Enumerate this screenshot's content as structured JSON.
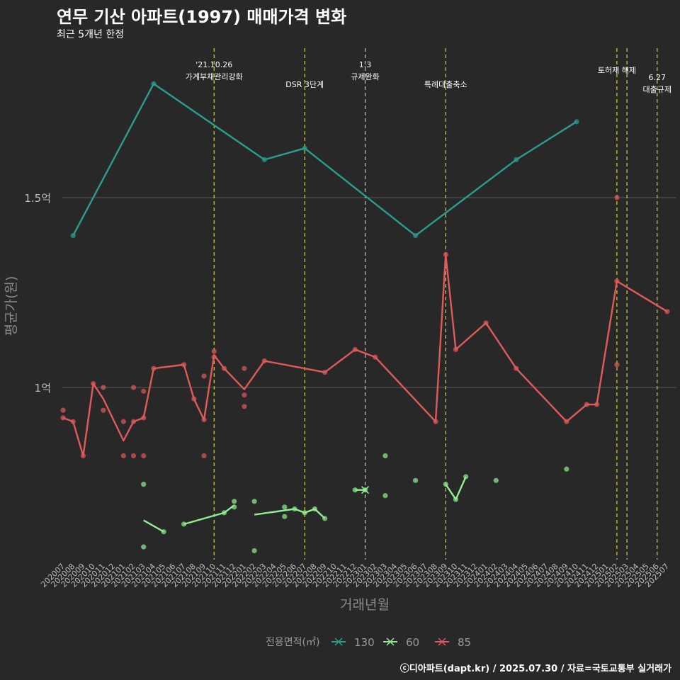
{
  "title": "연무 기산 아파트(1997) 매매가격 변화",
  "subtitle": "최근 5개년 한정",
  "footer": "ⓒ디아파트(dapt.kr) / 2025.07.30 / 자료=국토교통부 실거래가",
  "chart_data": {
    "type": "line",
    "title": "연무 기산 아파트(1997) 매매가격 변화",
    "subtitle": "최근 5개년 한정",
    "xlabel": "거래년월",
    "ylabel": "평균가(원)",
    "ylim": [
      0.45,
      1.95
    ],
    "y_unit": "억",
    "y_ticks": [
      {
        "value": 1.0,
        "label": "1억"
      },
      {
        "value": 1.5,
        "label": "1.5억"
      }
    ],
    "x_categories": [
      "202007",
      "202008",
      "202009",
      "202010",
      "202011",
      "202012",
      "202101",
      "202102",
      "202103",
      "202104",
      "202105",
      "202106",
      "202107",
      "202108",
      "202109",
      "202110",
      "202111",
      "202112",
      "202201",
      "202202",
      "202203",
      "202204",
      "202205",
      "202206",
      "202207",
      "202208",
      "202209",
      "202210",
      "202211",
      "202212",
      "202301",
      "202302",
      "202303",
      "202304",
      "202305",
      "202306",
      "202307",
      "202308",
      "202309",
      "202310",
      "202311",
      "202312",
      "202401",
      "202402",
      "202403",
      "202404",
      "202405",
      "202406",
      "202407",
      "202408",
      "202409",
      "202410",
      "202411",
      "202412",
      "202501",
      "202502",
      "202503",
      "202504",
      "202505",
      "202506",
      "202507"
    ],
    "x_ticks": [
      "202007",
      "202008",
      "202009",
      "202010",
      "202011",
      "202012",
      "202101",
      "202102",
      "202103",
      "202104",
      "202105",
      "202106",
      "202107",
      "202108",
      "202109",
      "202110",
      "202111",
      "202112",
      "202201",
      "202202",
      "202203",
      "202204",
      "202205",
      "202206",
      "202207",
      "202208",
      "202209",
      "202210",
      "202211",
      "202212",
      "202301",
      "202302",
      "202303",
      "202304",
      "202305",
      "202306",
      "202307",
      "202308",
      "202309",
      "202310",
      "202311",
      "202312",
      "202401",
      "202402",
      "202403",
      "202404",
      "202405",
      "202406",
      "202407",
      "202408",
      "202409",
      "202410",
      "202411",
      "202412",
      "202501",
      "202502",
      "202503",
      "202504",
      "202505",
      "202506",
      "202507"
    ],
    "grid": "horizontal",
    "legend_title": "전용면적(㎡)",
    "legend_position": "bottom",
    "annotations": [
      {
        "x": "202110",
        "lines": [
          "'21.10.26",
          "가계부채관리강화"
        ],
        "row": 1
      },
      {
        "x": "202207",
        "lines": [
          "DSR 3단계"
        ],
        "row": 2
      },
      {
        "x": "202301",
        "lines": [
          "1.3",
          "규제완화"
        ],
        "row": 1
      },
      {
        "x": "202309",
        "lines": [
          "특례대출축소"
        ],
        "row": 2
      },
      {
        "x": "202502",
        "lines": [
          "토허제 해제"
        ],
        "row": 0
      },
      {
        "x": "202503",
        "lines": [],
        "row": 0
      },
      {
        "x": "202506",
        "lines": [
          "6.27",
          "대출규제"
        ],
        "row": 3
      }
    ],
    "series": [
      {
        "name": "130",
        "color": "#2a9d8f",
        "line": [
          [
            "202008",
            1.4
          ],
          [
            "202104",
            1.8
          ],
          [
            "202203",
            1.6
          ],
          [
            "202207",
            1.63
          ],
          [
            "202306",
            1.4
          ],
          [
            "202404",
            1.6
          ],
          [
            "202410",
            1.7
          ]
        ],
        "points": [
          [
            "202008",
            1.4
          ],
          [
            "202104",
            1.8
          ],
          [
            "202203",
            1.6
          ],
          [
            "202207",
            1.63
          ],
          [
            "202306",
            1.4
          ],
          [
            "202404",
            1.6
          ],
          [
            "202410",
            1.7
          ]
        ]
      },
      {
        "name": "60",
        "color": "#90ee90",
        "line": [
          [
            [
              "202103",
              0.65
            ],
            [
              "202105",
              0.62
            ]
          ],
          [
            [
              "202107",
              0.64
            ],
            [
              "202111",
              0.67
            ],
            [
              "202112",
              0.69
            ]
          ],
          [
            [
              "202202",
              0.665
            ],
            [
              "202206",
              0.68
            ],
            [
              "202207",
              0.67
            ],
            [
              "202208",
              0.68
            ],
            [
              "202209",
              0.655
            ]
          ],
          [
            [
              "202212",
              0.73
            ],
            [
              "202301",
              0.73
            ]
          ],
          [
            [
              "202309",
              0.745
            ],
            [
              "202310",
              0.705
            ],
            [
              "202311",
              0.765
            ]
          ]
        ],
        "points": [
          [
            "202103",
            0.745
          ],
          [
            "202103",
            0.58
          ],
          [
            "202105",
            0.62
          ],
          [
            "202107",
            0.64
          ],
          [
            "202111",
            0.67
          ],
          [
            "202112",
            0.7
          ],
          [
            "202112",
            0.685
          ],
          [
            "202202",
            0.7
          ],
          [
            "202202",
            0.57
          ],
          [
            "202205",
            0.685
          ],
          [
            "202205",
            0.66
          ],
          [
            "202206",
            0.68
          ],
          [
            "202207",
            0.67
          ],
          [
            "202208",
            0.68
          ],
          [
            "202209",
            0.655
          ],
          [
            "202212",
            0.73
          ],
          [
            "202301",
            0.73
          ],
          [
            "202303",
            0.82
          ],
          [
            "202303",
            0.715
          ],
          [
            "202306",
            0.755
          ],
          [
            "202309",
            0.745
          ],
          [
            "202310",
            0.705
          ],
          [
            "202311",
            0.765
          ],
          [
            "202402",
            0.755
          ],
          [
            "202409",
            0.785
          ]
        ]
      },
      {
        "name": "85",
        "color": "#e05a5a",
        "line": [
          [
            "202007",
            0.92
          ],
          [
            "202008",
            0.91
          ],
          [
            "202009",
            0.82
          ],
          [
            "202010",
            1.01
          ],
          [
            "202011",
            0.97
          ],
          [
            "202101",
            0.86
          ],
          [
            "202102",
            0.91
          ],
          [
            "202103",
            0.92
          ],
          [
            "202104",
            1.05
          ],
          [
            "202107",
            1.06
          ],
          [
            "202108",
            0.97
          ],
          [
            "202109",
            0.915
          ],
          [
            "202110",
            1.085
          ],
          [
            "202111",
            1.05
          ],
          [
            "202201",
            0.995
          ],
          [
            "202203",
            1.07
          ],
          [
            "202209",
            1.04
          ],
          [
            "202212",
            1.1
          ],
          [
            "202302",
            1.08
          ],
          [
            "202308",
            0.91
          ],
          [
            "202309",
            1.35
          ],
          [
            "202310",
            1.1
          ],
          [
            "202401",
            1.17
          ],
          [
            "202404",
            1.05
          ],
          [
            "202409",
            0.91
          ],
          [
            "202411",
            0.955
          ],
          [
            "202412",
            0.955
          ],
          [
            "202502",
            1.28
          ],
          [
            "202507",
            1.2
          ]
        ],
        "points": [
          [
            "202007",
            0.94
          ],
          [
            "202007",
            0.92
          ],
          [
            "202008",
            0.91
          ],
          [
            "202009",
            0.82
          ],
          [
            "202010",
            1.01
          ],
          [
            "202011",
            0.94
          ],
          [
            "202011",
            1.0
          ],
          [
            "202101",
            0.91
          ],
          [
            "202101",
            0.82
          ],
          [
            "202102",
            1.0
          ],
          [
            "202102",
            0.91
          ],
          [
            "202102",
            0.82
          ],
          [
            "202103",
            0.99
          ],
          [
            "202103",
            0.92
          ],
          [
            "202103",
            0.82
          ],
          [
            "202104",
            1.05
          ],
          [
            "202107",
            1.06
          ],
          [
            "202108",
            0.97
          ],
          [
            "202109",
            1.03
          ],
          [
            "202109",
            0.915
          ],
          [
            "202109",
            0.82
          ],
          [
            "202110",
            1.095
          ],
          [
            "202110",
            1.08
          ],
          [
            "202111",
            1.05
          ],
          [
            "202201",
            1.05
          ],
          [
            "202201",
            0.98
          ],
          [
            "202201",
            0.95
          ],
          [
            "202203",
            1.07
          ],
          [
            "202209",
            1.04
          ],
          [
            "202212",
            1.1
          ],
          [
            "202302",
            1.08
          ],
          [
            "202308",
            0.91
          ],
          [
            "202309",
            1.35
          ],
          [
            "202310",
            1.1
          ],
          [
            "202401",
            1.17
          ],
          [
            "202404",
            1.05
          ],
          [
            "202409",
            0.91
          ],
          [
            "202411",
            0.955
          ],
          [
            "202412",
            0.955
          ],
          [
            "202502",
            1.5
          ],
          [
            "202502",
            1.06
          ],
          [
            "202502",
            1.28
          ],
          [
            "202507",
            1.2
          ]
        ]
      }
    ]
  }
}
